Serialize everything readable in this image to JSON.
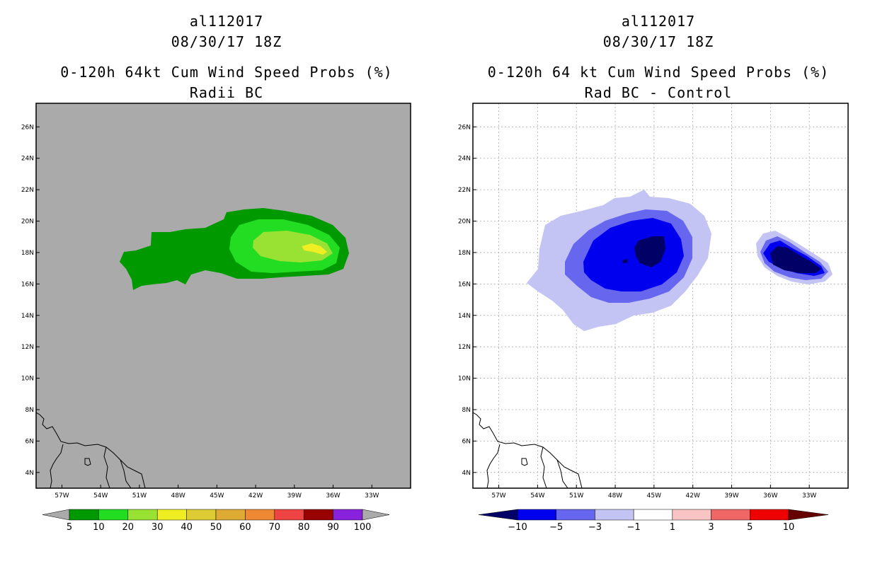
{
  "left_panel": {
    "storm_id": "al112017",
    "date": "08/30/17 18Z",
    "title": "0-120h 64kt Cum Wind Speed Probs (%)",
    "subtitle": "Radii BC",
    "map_background": "#aaaaaa",
    "grid": false
  },
  "right_panel": {
    "storm_id": "al112017",
    "date": "08/30/17 18Z",
    "title": "0-120h 64 kt Cum Wind Speed Probs (%)",
    "subtitle": "Rad BC - Control",
    "map_background": "#ffffff",
    "grid": true
  },
  "chart_data": [
    {
      "type": "heatmap",
      "title": "0-120h 64kt Cum Wind Speed Probs (%)",
      "subtitle": "Radii BC",
      "x_ticks": [
        "57W",
        "54W",
        "51W",
        "48W",
        "45W",
        "42W",
        "39W",
        "36W",
        "33W"
      ],
      "y_ticks": [
        "4N",
        "6N",
        "8N",
        "10N",
        "12N",
        "14N",
        "16N",
        "18N",
        "20N",
        "22N",
        "24N",
        "26N"
      ],
      "lon_range": [
        -59,
        -30
      ],
      "lat_range": [
        3,
        27.5
      ],
      "colorbar": {
        "labels": [
          "5",
          "10",
          "20",
          "30",
          "40",
          "50",
          "60",
          "70",
          "80",
          "90",
          "100"
        ],
        "colors": [
          "#009900",
          "#22dd22",
          "#99e233",
          "#eeee22",
          "#ddcc33",
          "#ddaa33",
          "#ee8833",
          "#ee4444",
          "#990000",
          "#8822dd"
        ],
        "under_color": "#aaaaaa",
        "over_color": "#aaaaaa"
      },
      "contours": [
        {
          "level": "5-10",
          "color": "#009900"
        },
        {
          "level": "10-20",
          "color": "#22dd22"
        },
        {
          "level": "20-30",
          "color": "#99e233"
        },
        {
          "level": "30-40",
          "color": "#eeee22"
        }
      ]
    },
    {
      "type": "heatmap",
      "title": "0-120h 64 kt Cum Wind Speed Probs (%)",
      "subtitle": "Rad BC - Control",
      "x_ticks": [
        "57W",
        "54W",
        "51W",
        "48W",
        "45W",
        "42W",
        "39W",
        "36W",
        "33W"
      ],
      "y_ticks": [
        "4N",
        "6N",
        "8N",
        "10N",
        "12N",
        "14N",
        "16N",
        "18N",
        "20N",
        "22N",
        "24N",
        "26N"
      ],
      "lon_range": [
        -59,
        -30
      ],
      "lat_range": [
        3,
        27.5
      ],
      "colorbar": {
        "labels": [
          "−10",
          "−5",
          "−3",
          "−1",
          "1",
          "3",
          "5",
          "10"
        ],
        "colors": [
          "#0000ee",
          "#6666ee",
          "#c4c4f4",
          "#ffffff",
          "#f8c4c4",
          "#ee6666",
          "#ee0000"
        ],
        "under_color": "#000066",
        "over_color": "#660000"
      },
      "contours": [
        {
          "level": "-3 to -1",
          "color": "#c4c4f4"
        },
        {
          "level": "-5 to -3",
          "color": "#6666ee"
        },
        {
          "level": "-10 to -5",
          "color": "#0000ee"
        },
        {
          "level": "< -10",
          "color": "#000066"
        }
      ]
    }
  ]
}
